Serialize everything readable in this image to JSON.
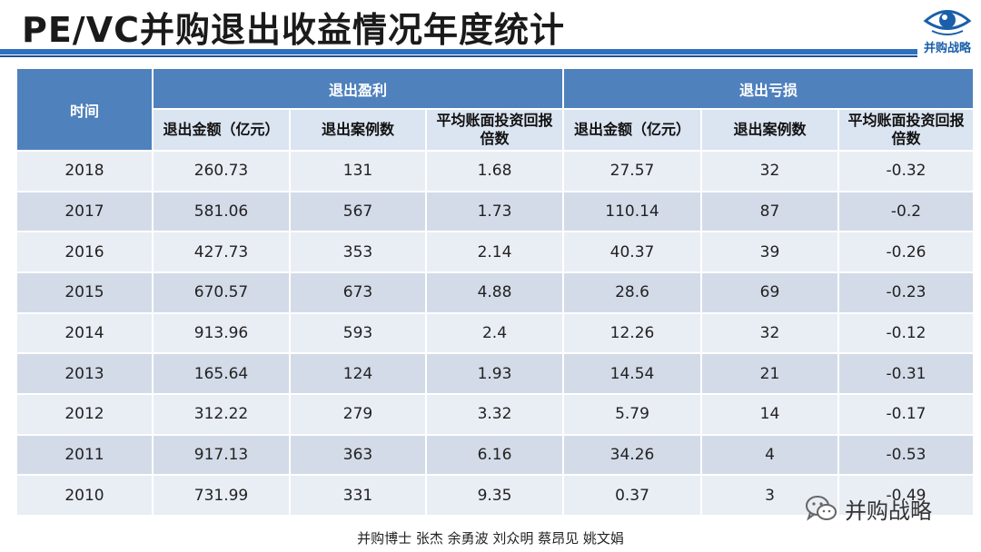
{
  "header": {
    "title": "PE/VC并购退出收益情况年度统计",
    "logo_text": "并购战略"
  },
  "table": {
    "time_header": "时间",
    "group_headers": [
      "退出盈利",
      "退出亏损"
    ],
    "sub_headers": [
      "退出金额（亿元）",
      "退出案例数",
      "平均账面投资回报倍数",
      "退出金额（亿元）",
      "退出案例数",
      "平均账面投资回报倍数"
    ],
    "rows": [
      [
        "2018",
        "260.73",
        "131",
        "1.68",
        "27.57",
        "32",
        "-0.32"
      ],
      [
        "2017",
        "581.06",
        "567",
        "1.73",
        "110.14",
        "87",
        "-0.2"
      ],
      [
        "2016",
        "427.73",
        "353",
        "2.14",
        "40.37",
        "39",
        "-0.26"
      ],
      [
        "2015",
        "670.57",
        "673",
        "4.88",
        "28.6",
        "69",
        "-0.23"
      ],
      [
        "2014",
        "913.96",
        "593",
        "2.4",
        "12.26",
        "32",
        "-0.12"
      ],
      [
        "2013",
        "165.64",
        "124",
        "1.93",
        "14.54",
        "21",
        "-0.31"
      ],
      [
        "2012",
        "312.22",
        "279",
        "3.32",
        "5.79",
        "14",
        "-0.17"
      ],
      [
        "2011",
        "917.13",
        "363",
        "6.16",
        "34.26",
        "4",
        "-0.53"
      ],
      [
        "2010",
        "731.99",
        "331",
        "9.35",
        "0.37",
        "3",
        "-0.49"
      ]
    ]
  },
  "watermark": {
    "text": "并购战略",
    "icon": "wechat-icon"
  },
  "footer": {
    "authors": "并购博士 张杰  余勇波  刘众明  蔡昂见  姚文娟"
  },
  "colors": {
    "accent": "#2d6fc0",
    "header_bg": "#4f81bd",
    "subheader_bg": "#dbe4f1",
    "row_light": "#e9edf4",
    "row_dark": "#d3dbe8"
  }
}
